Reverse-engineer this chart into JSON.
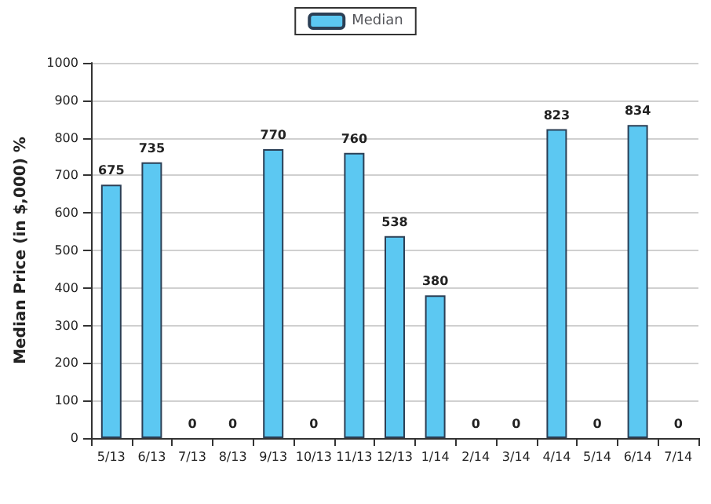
{
  "chart_data": {
    "type": "bar",
    "ylabel": "Median Price (in $,000) %",
    "categories": [
      "5/13",
      "6/13",
      "7/13",
      "8/13",
      "9/13",
      "10/13",
      "11/13",
      "12/13",
      "1/14",
      "2/14",
      "3/14",
      "4/14",
      "5/14",
      "6/14",
      "7/14"
    ],
    "series": [
      {
        "name": "Median",
        "color": "#5cc8f2",
        "values": [
          675,
          735,
          0,
          0,
          770,
          0,
          760,
          538,
          380,
          0,
          0,
          823,
          0,
          834,
          0
        ]
      }
    ],
    "ylim": [
      0,
      1000
    ],
    "yticks": [
      0,
      100,
      200,
      300,
      400,
      500,
      600,
      700,
      800,
      900,
      1000
    ],
    "grid": "y",
    "legend": "top",
    "data_labels": true
  }
}
